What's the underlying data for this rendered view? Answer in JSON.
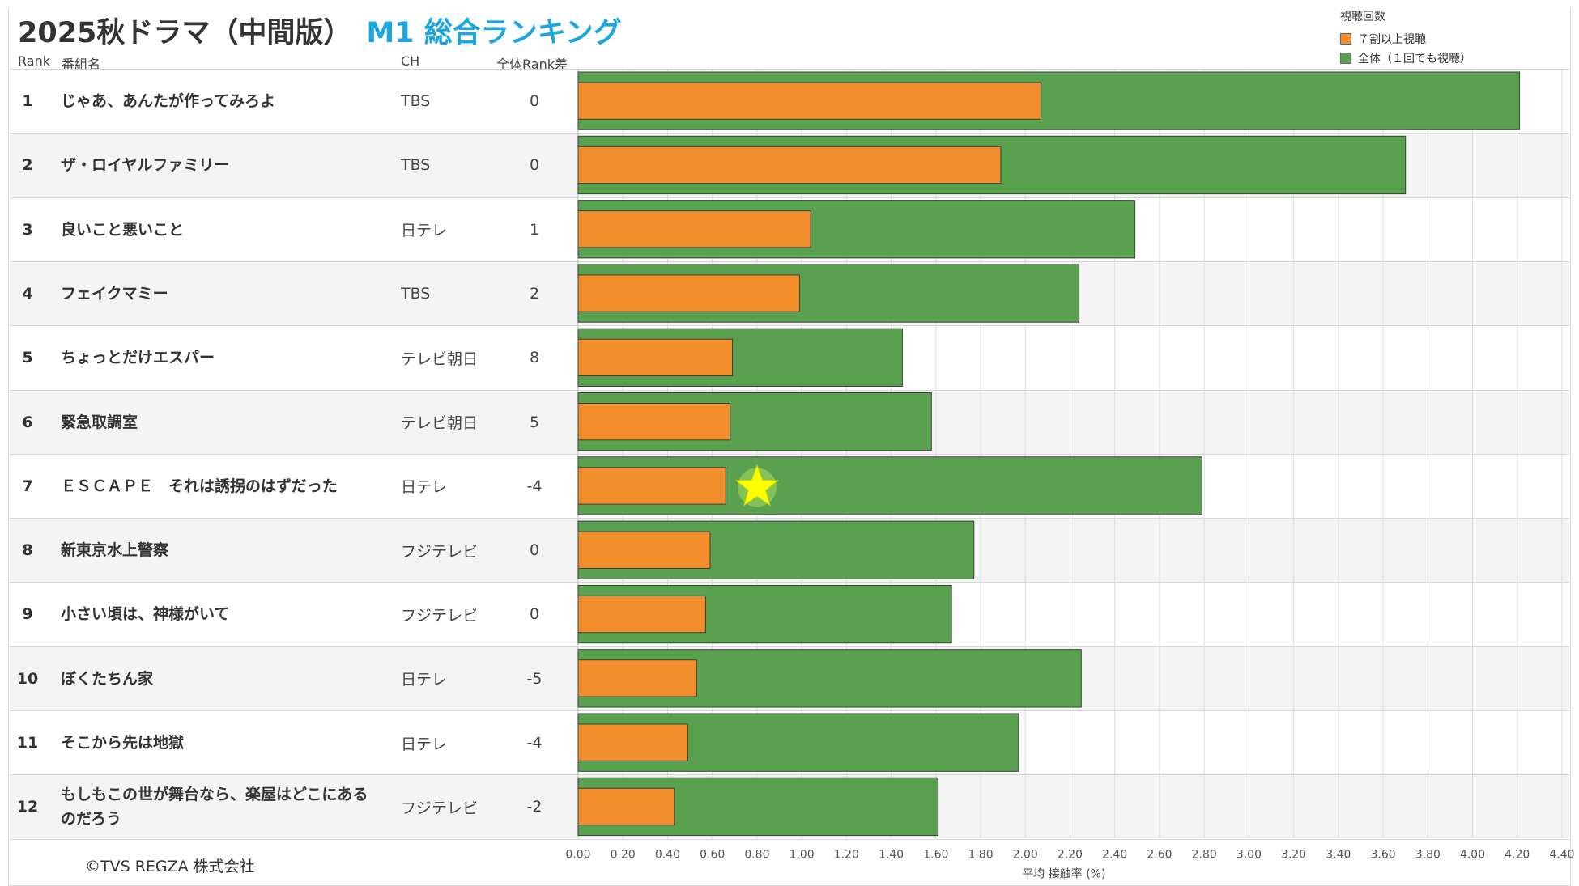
{
  "title": {
    "main": "2025秋ドラマ（中間版）",
    "sub": "M1 総合ランキング"
  },
  "headers": {
    "rank": "Rank",
    "name": "番組名",
    "ch": "CH",
    "diff": "全体Rank差"
  },
  "legend": {
    "title": "視聴回数",
    "items": [
      {
        "label": "７割以上視聴",
        "color": "#f28e2b"
      },
      {
        "label": "全体（１回でも視聴）",
        "color": "#59a14f"
      }
    ]
  },
  "rows": [
    {
      "rank": "1",
      "name": "じゃあ、あんたが作ってみろよ",
      "ch": "TBS",
      "diff": "0"
    },
    {
      "rank": "2",
      "name": "ザ・ロイヤルファミリー",
      "ch": "TBS",
      "diff": "0"
    },
    {
      "rank": "3",
      "name": "良いこと悪いこと",
      "ch": "日テレ",
      "diff": "1"
    },
    {
      "rank": "4",
      "name": "フェイクマミー",
      "ch": "TBS",
      "diff": "2"
    },
    {
      "rank": "5",
      "name": "ちょっとだけエスパー",
      "ch": "テレビ朝日",
      "diff": "8"
    },
    {
      "rank": "6",
      "name": "緊急取調室",
      "ch": "テレビ朝日",
      "diff": "5"
    },
    {
      "rank": "7",
      "name": "ＥＳＣＡＰＥ　それは誘拐のはずだった",
      "ch": "日テレ",
      "diff": "-4"
    },
    {
      "rank": "8",
      "name": "新東京水上警察",
      "ch": "フジテレビ",
      "diff": "0"
    },
    {
      "rank": "9",
      "name": "小さい頃は、神様がいて",
      "ch": "フジテレビ",
      "diff": "0"
    },
    {
      "rank": "10",
      "name": "ぼくたちん家",
      "ch": "日テレ",
      "diff": "-5"
    },
    {
      "rank": "11",
      "name": "そこから先は地獄",
      "ch": "日テレ",
      "diff": "-4"
    },
    {
      "rank": "12",
      "name": "もしもこの世が舞台なら、楽屋はどこにあるのだろう",
      "ch": "フジテレビ",
      "diff": "-2"
    }
  ],
  "chart_data": {
    "type": "bar",
    "orientation": "horizontal",
    "categories": [
      "じゃあ、あんたが作ってみろよ",
      "ザ・ロイヤルファミリー",
      "良いこと悪いこと",
      "フェイクマミー",
      "ちょっとだけエスパー",
      "緊急取調室",
      "ＥＳＣＡＰＥ　それは誘拐のはずだった",
      "新東京水上警察",
      "小さい頃は、神様がいて",
      "ぼくたちん家",
      "そこから先は地獄",
      "もしもこの世が舞台なら、楽屋はどこにあるのだろう"
    ],
    "series": [
      {
        "name": "全体（１回でも視聴）",
        "color": "#59a14f",
        "values": [
          4.21,
          3.7,
          2.49,
          2.24,
          1.45,
          1.58,
          2.79,
          1.77,
          1.67,
          2.25,
          1.97,
          1.61
        ]
      },
      {
        "name": "７割以上視聴",
        "color": "#f28e2b",
        "values": [
          2.07,
          1.89,
          1.04,
          0.99,
          0.69,
          0.68,
          0.66,
          0.59,
          0.57,
          0.53,
          0.49,
          0.43
        ]
      }
    ],
    "highlight": {
      "row_index": 6,
      "value": 0.8,
      "marker": "star",
      "color": "#ffff00"
    },
    "xlabel": "平均 接触率 (%)",
    "xlim": [
      0,
      4.4
    ],
    "ticks": [
      "0.00",
      "0.20",
      "0.40",
      "0.60",
      "0.80",
      "1.00",
      "1.20",
      "1.40",
      "1.60",
      "1.80",
      "2.00",
      "2.20",
      "2.40",
      "2.60",
      "2.80",
      "3.00",
      "3.20",
      "3.40",
      "3.60",
      "3.80",
      "4.00",
      "4.20",
      "4.40"
    ],
    "tick_values": [
      0,
      0.2,
      0.4,
      0.6,
      0.8,
      1.0,
      1.2,
      1.4,
      1.6,
      1.8,
      2.0,
      2.2,
      2.4,
      2.6,
      2.8,
      3.0,
      3.2,
      3.4,
      3.6,
      3.8,
      4.0,
      4.2,
      4.4
    ],
    "grid": true,
    "legend_position": "top-right"
  },
  "copyright": "©TVS REGZA 株式会社"
}
